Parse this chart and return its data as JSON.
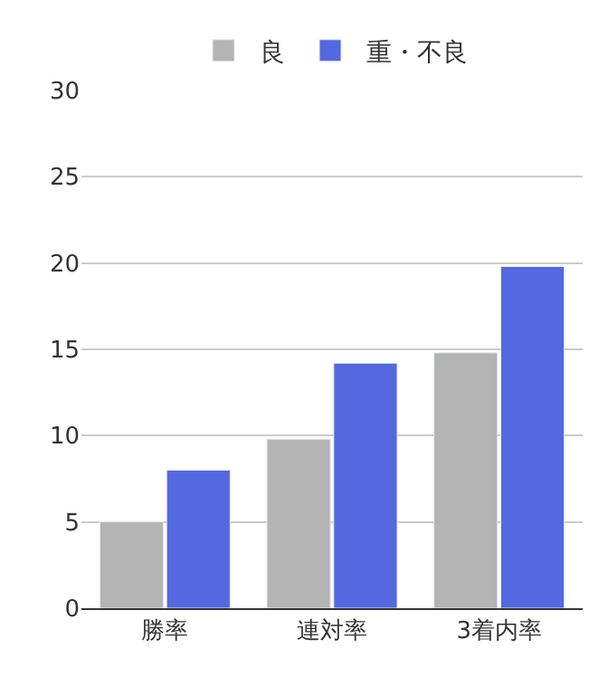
{
  "chart_data": {
    "type": "bar",
    "categories": [
      "勝率",
      "連対率",
      "3着内率"
    ],
    "series": [
      {
        "name": "良",
        "color": "#b4b4b4",
        "values": [
          5.0,
          9.8,
          14.8
        ]
      },
      {
        "name": "重・不良",
        "color": "#5468e0",
        "values": [
          8.0,
          14.2,
          19.8
        ]
      }
    ],
    "ylim": [
      0,
      30
    ],
    "yticks": [
      0,
      5,
      10,
      15,
      20,
      25,
      30
    ],
    "grid": "y",
    "legend": "top"
  }
}
